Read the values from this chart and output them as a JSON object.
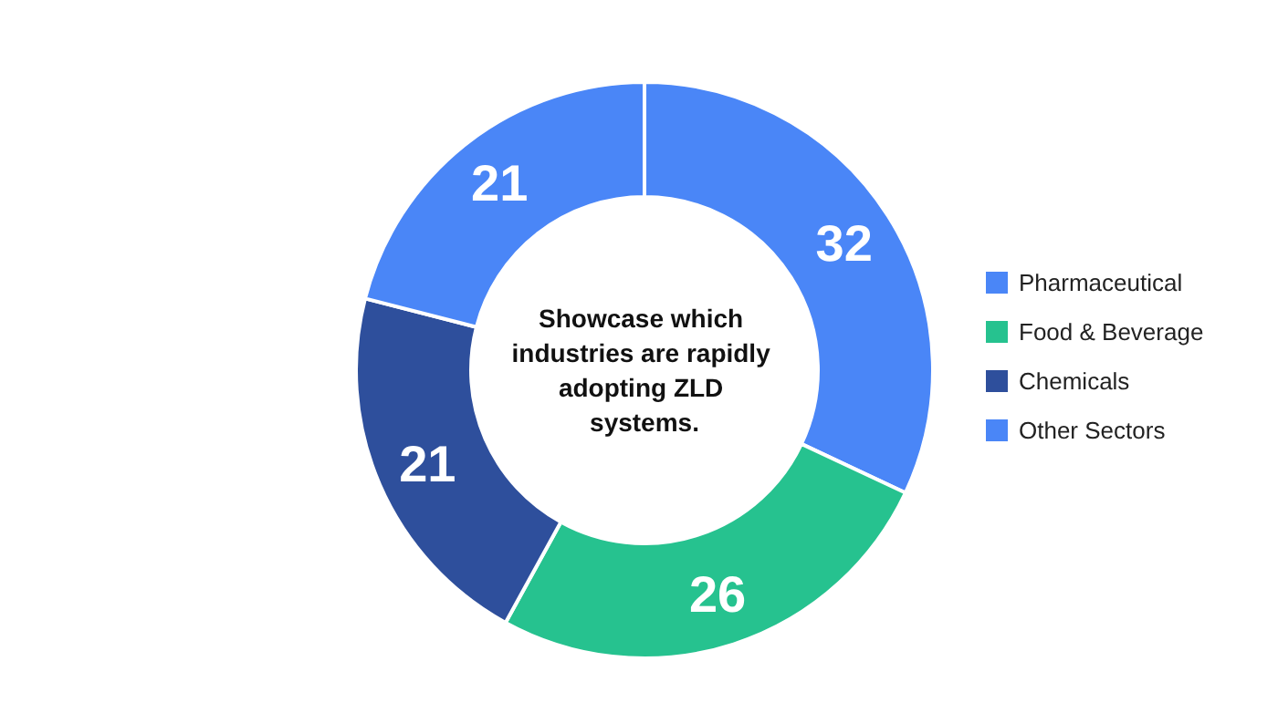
{
  "chart_data": {
    "type": "donut",
    "title": "Showcase which industries are rapidly adopting ZLD systems.",
    "categories": [
      "Pharmaceutical",
      "Food & Beverage",
      "Chemicals",
      "Other Sectors"
    ],
    "values": [
      32,
      26,
      21,
      21
    ],
    "colors": [
      "#4a86f7",
      "#26c28f",
      "#2e4f9c",
      "#4a86f7"
    ],
    "data_labels": true,
    "legend": "right"
  }
}
